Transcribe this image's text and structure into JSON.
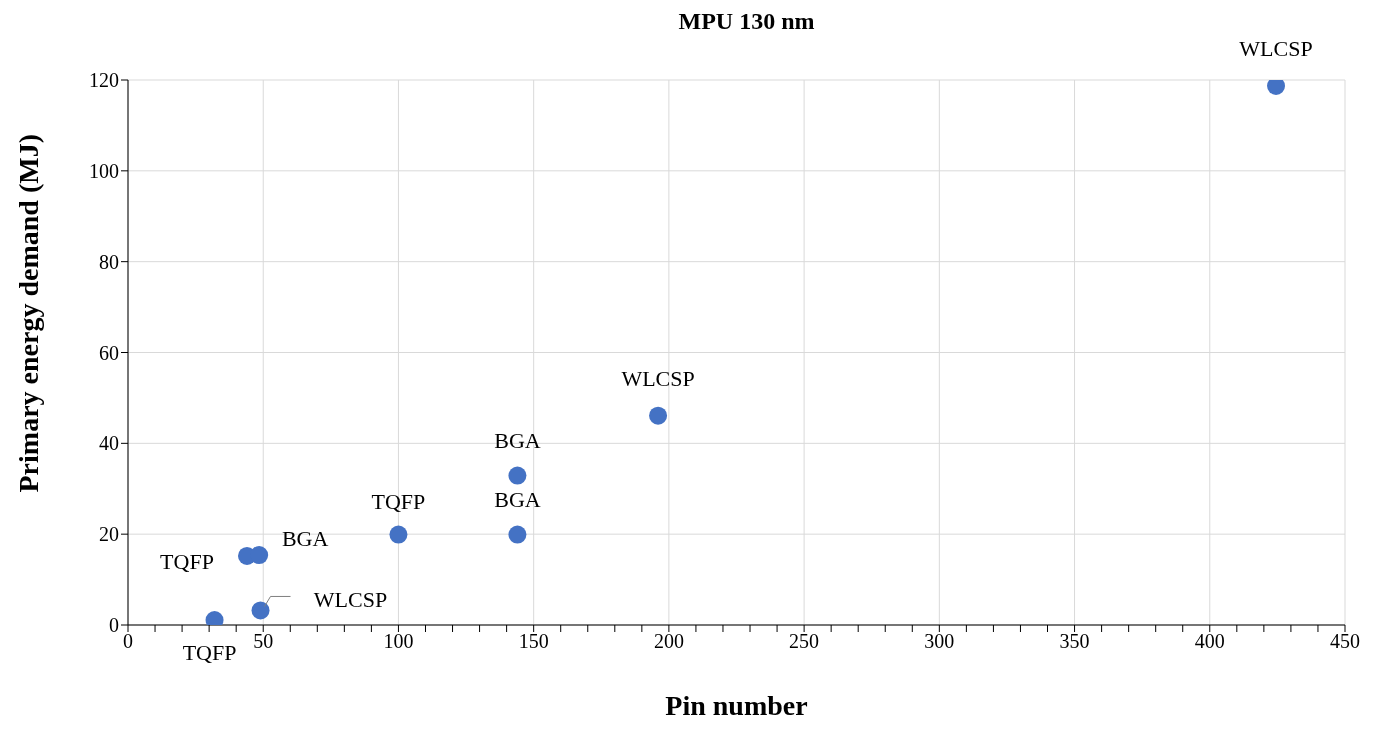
{
  "chart_data": {
    "type": "scatter",
    "title": "MPU 130 nm",
    "xlabel": "Pin number",
    "ylabel": "Primary energy demand (MJ)",
    "series": [
      {
        "color": "#4472c4",
        "x": [
          32,
          44,
          48.5,
          49,
          100,
          144,
          144,
          196,
          424.5
        ],
        "values": [
          1.1,
          15.2,
          15.4,
          3.2,
          19.9,
          32.9,
          19.9,
          46.1,
          118.7
        ]
      }
    ],
    "xlim": [
      0,
      450
    ],
    "ylim": [
      0,
      120
    ],
    "xticks": [
      0,
      {
        "value": 10,
        "label": null
      },
      {
        "value": 20,
        "label": null
      },
      {
        "value": 30,
        "label": null
      },
      {
        "value": 40,
        "label": null
      },
      50,
      {
        "value": 60,
        "label": null
      },
      {
        "value": 70,
        "label": null
      },
      {
        "value": 80,
        "label": null
      },
      {
        "value": 90,
        "label": null
      },
      100,
      {
        "value": 110,
        "label": null
      },
      {
        "value": 120,
        "label": null
      },
      {
        "value": 130,
        "label": null
      },
      {
        "value": 140,
        "label": null
      },
      150,
      {
        "value": 160,
        "label": null
      },
      {
        "value": 170,
        "label": null
      },
      {
        "value": 180,
        "label": null
      },
      {
        "value": 190,
        "label": null
      },
      200,
      {
        "value": 210,
        "label": null
      },
      {
        "value": 220,
        "label": null
      },
      {
        "value": 230,
        "label": null
      },
      {
        "value": 240,
        "label": null
      },
      250,
      {
        "value": 260,
        "label": null
      },
      {
        "value": 270,
        "label": null
      },
      {
        "value": 280,
        "label": null
      },
      {
        "value": 290,
        "label": null
      },
      300,
      {
        "value": 310,
        "label": null
      },
      {
        "value": 320,
        "label": null
      },
      {
        "value": 330,
        "label": null
      },
      {
        "value": 340,
        "label": null
      },
      350,
      {
        "value": 360,
        "label": null
      },
      {
        "value": 370,
        "label": null
      },
      {
        "value": 380,
        "label": null
      },
      {
        "value": 390,
        "label": null
      },
      400,
      {
        "value": 410,
        "label": null
      },
      {
        "value": 420,
        "label": null
      },
      {
        "value": 430,
        "label": null
      },
      {
        "value": 440,
        "label": null
      },
      450
    ],
    "yticks": [
      0,
      20,
      40,
      60,
      80,
      100,
      120
    ],
    "grid": true,
    "marker": "circle",
    "annotations": [
      {
        "text": "TQFP",
        "x": 32,
        "y": 1.1
      },
      {
        "text": "TQFP",
        "x": 44,
        "y": 15.2
      },
      {
        "text": "BGA",
        "x": 48.5,
        "y": 15.4
      },
      {
        "text": "WLCSP",
        "x": 49,
        "y": 3.2
      },
      {
        "text": "TQFP",
        "x": 100,
        "y": 19.9
      },
      {
        "text": "BGA",
        "x": 144,
        "y": 32.9
      },
      {
        "text": "BGA",
        "x": 144,
        "y": 19.9
      },
      {
        "text": "WLCSP",
        "x": 196,
        "y": 46.1
      },
      {
        "text": "WLCSP",
        "x": 424.5,
        "y": 118.7
      }
    ]
  }
}
